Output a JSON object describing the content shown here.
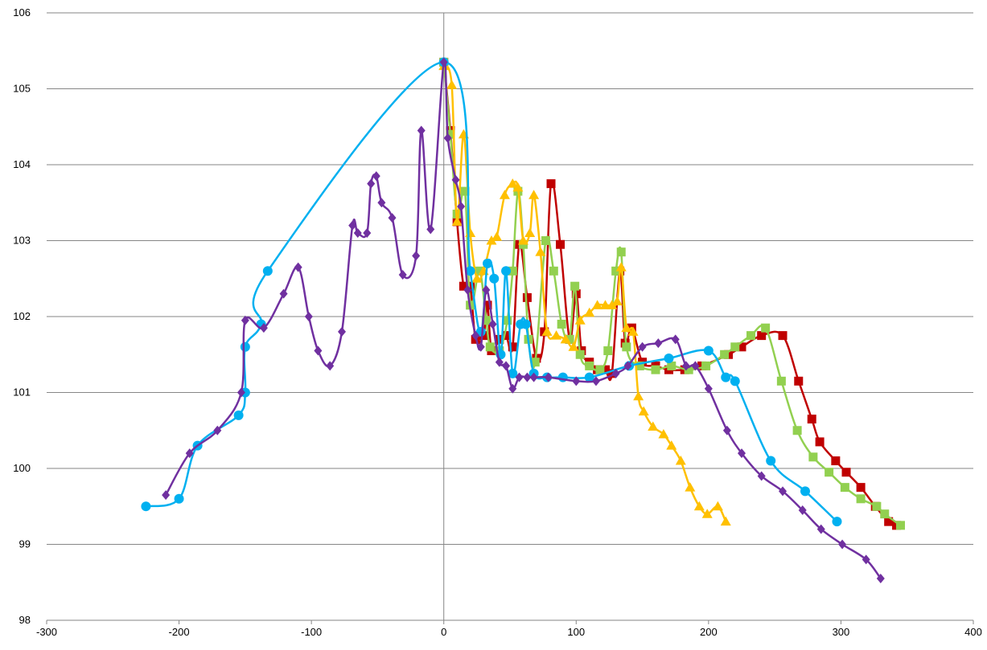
{
  "chart_data": {
    "type": "scatter",
    "title": "",
    "xlabel": "",
    "ylabel": "",
    "xlim": [
      -300,
      400
    ],
    "ylim": [
      98,
      106
    ],
    "x_ticks": [
      -300,
      -200,
      -100,
      0,
      100,
      200,
      300,
      400
    ],
    "y_ticks": [
      98,
      99,
      100,
      101,
      102,
      103,
      104,
      105,
      106
    ],
    "x_tick_labels": [
      "-300",
      "-200",
      "-100",
      "0",
      "100",
      "200",
      "300",
      "400"
    ],
    "y_tick_labels": [
      "98",
      "99",
      "100",
      "101",
      "102",
      "103",
      "104",
      "105",
      "106"
    ],
    "grid": "horizontal",
    "legend": "none",
    "series": [
      {
        "color": "#C00000",
        "marker": "square",
        "points": [
          [
            0,
            105.35
          ],
          [
            5,
            104.45
          ],
          [
            10,
            103.25
          ],
          [
            15,
            102.4
          ],
          [
            20,
            102.4
          ],
          [
            24,
            101.7
          ],
          [
            30,
            101.75
          ],
          [
            33,
            102.15
          ],
          [
            36,
            101.55
          ],
          [
            42,
            101.7
          ],
          [
            47,
            101.75
          ],
          [
            52,
            101.6
          ],
          [
            57,
            102.95
          ],
          [
            63,
            102.25
          ],
          [
            70,
            101.45
          ],
          [
            76,
            101.8
          ],
          [
            81,
            103.75
          ],
          [
            88,
            102.95
          ],
          [
            95,
            101.7
          ],
          [
            100,
            102.3
          ],
          [
            104,
            101.55
          ],
          [
            110,
            101.4
          ],
          [
            116,
            101.3
          ],
          [
            122,
            101.3
          ],
          [
            127,
            101.25
          ],
          [
            133,
            102.6
          ],
          [
            137,
            101.65
          ],
          [
            142,
            101.85
          ],
          [
            150,
            101.4
          ],
          [
            160,
            101.35
          ],
          [
            170,
            101.3
          ],
          [
            182,
            101.3
          ],
          [
            195,
            101.35
          ],
          [
            215,
            101.5
          ],
          [
            225,
            101.6
          ],
          [
            240,
            101.75
          ],
          [
            256,
            101.75
          ],
          [
            268,
            101.15
          ],
          [
            278,
            100.65
          ],
          [
            284,
            100.35
          ],
          [
            296,
            100.1
          ],
          [
            304,
            99.95
          ],
          [
            315,
            99.75
          ],
          [
            326,
            99.5
          ],
          [
            336,
            99.3
          ],
          [
            342,
            99.25
          ]
        ]
      },
      {
        "color": "#92D050",
        "marker": "square",
        "points": [
          [
            0,
            105.35
          ],
          [
            5,
            104.4
          ],
          [
            10,
            103.35
          ],
          [
            16,
            103.65
          ],
          [
            20,
            102.15
          ],
          [
            27,
            102.6
          ],
          [
            32,
            101.95
          ],
          [
            35,
            101.6
          ],
          [
            42,
            101.55
          ],
          [
            48,
            101.95
          ],
          [
            52,
            102.6
          ],
          [
            56,
            103.65
          ],
          [
            60,
            102.95
          ],
          [
            64,
            101.7
          ],
          [
            69,
            101.4
          ],
          [
            77,
            103.0
          ],
          [
            83,
            102.6
          ],
          [
            89,
            101.9
          ],
          [
            95,
            101.7
          ],
          [
            99,
            102.4
          ],
          [
            103,
            101.5
          ],
          [
            110,
            101.35
          ],
          [
            118,
            101.3
          ],
          [
            124,
            101.55
          ],
          [
            130,
            102.6
          ],
          [
            134,
            102.85
          ],
          [
            138,
            101.6
          ],
          [
            148,
            101.35
          ],
          [
            160,
            101.3
          ],
          [
            172,
            101.35
          ],
          [
            185,
            101.3
          ],
          [
            198,
            101.35
          ],
          [
            212,
            101.5
          ],
          [
            220,
            101.6
          ],
          [
            232,
            101.75
          ],
          [
            243,
            101.85
          ],
          [
            255,
            101.15
          ],
          [
            267,
            100.5
          ],
          [
            279,
            100.15
          ],
          [
            291,
            99.95
          ],
          [
            303,
            99.75
          ],
          [
            315,
            99.6
          ],
          [
            327,
            99.5
          ],
          [
            333,
            99.4
          ],
          [
            345,
            99.25
          ]
        ]
      },
      {
        "color": "#FFC000",
        "marker": "triangle",
        "points": [
          [
            0,
            105.3
          ],
          [
            6,
            105.05
          ],
          [
            10,
            103.25
          ],
          [
            15,
            104.4
          ],
          [
            20,
            103.1
          ],
          [
            25,
            102.5
          ],
          [
            30,
            102.6
          ],
          [
            36,
            103.0
          ],
          [
            40,
            103.05
          ],
          [
            46,
            103.6
          ],
          [
            52,
            103.75
          ],
          [
            56,
            103.7
          ],
          [
            60,
            103.0
          ],
          [
            65,
            103.1
          ],
          [
            68,
            103.6
          ],
          [
            73,
            102.85
          ],
          [
            78,
            101.8
          ],
          [
            85,
            101.75
          ],
          [
            92,
            101.7
          ],
          [
            98,
            101.6
          ],
          [
            103,
            101.95
          ],
          [
            110,
            102.05
          ],
          [
            116,
            102.15
          ],
          [
            122,
            102.15
          ],
          [
            127,
            102.15
          ],
          [
            131,
            102.2
          ],
          [
            134,
            102.65
          ],
          [
            138,
            101.85
          ],
          [
            143,
            101.8
          ],
          [
            147,
            100.95
          ],
          [
            151,
            100.75
          ],
          [
            158,
            100.55
          ],
          [
            166,
            100.45
          ],
          [
            172,
            100.3
          ],
          [
            179,
            100.1
          ],
          [
            186,
            99.75
          ],
          [
            193,
            99.5
          ],
          [
            199,
            99.4
          ],
          [
            207,
            99.5
          ],
          [
            213,
            99.3
          ]
        ]
      },
      {
        "color": "#00B0F0",
        "marker": "circle",
        "points": [
          [
            -225,
            99.5
          ],
          [
            -200,
            99.6
          ],
          [
            -186,
            100.3
          ],
          [
            -155,
            100.7
          ],
          [
            -150,
            101.0
          ],
          [
            -150,
            101.6
          ],
          [
            -138,
            101.9
          ],
          [
            -133,
            102.6
          ],
          [
            0,
            105.35
          ],
          [
            20,
            102.6
          ],
          [
            28,
            101.8
          ],
          [
            33,
            102.7
          ],
          [
            38,
            102.5
          ],
          [
            43,
            101.5
          ],
          [
            47,
            102.6
          ],
          [
            52,
            101.25
          ],
          [
            58,
            101.9
          ],
          [
            62,
            101.9
          ],
          [
            68,
            101.25
          ],
          [
            78,
            101.2
          ],
          [
            90,
            101.2
          ],
          [
            110,
            101.2
          ],
          [
            140,
            101.35
          ],
          [
            170,
            101.45
          ],
          [
            200,
            101.55
          ],
          [
            213,
            101.2
          ],
          [
            220,
            101.15
          ],
          [
            247,
            100.1
          ],
          [
            273,
            99.7
          ],
          [
            297,
            99.3
          ]
        ]
      },
      {
        "color": "#7030A0",
        "marker": "diamond",
        "points": [
          [
            -210,
            99.65
          ],
          [
            -192,
            100.2
          ],
          [
            -171,
            100.5
          ],
          [
            -153,
            101.0
          ],
          [
            -150,
            101.95
          ],
          [
            -136,
            101.85
          ],
          [
            -121,
            102.3
          ],
          [
            -110,
            102.65
          ],
          [
            -102,
            102.0
          ],
          [
            -95,
            101.55
          ],
          [
            -86,
            101.35
          ],
          [
            -77,
            101.8
          ],
          [
            -69,
            103.2
          ],
          [
            -65,
            103.1
          ],
          [
            -58,
            103.1
          ],
          [
            -55,
            103.75
          ],
          [
            -51,
            103.85
          ],
          [
            -47,
            103.5
          ],
          [
            -39,
            103.3
          ],
          [
            -31,
            102.55
          ],
          [
            -21,
            102.8
          ],
          [
            -17,
            104.45
          ],
          [
            -10,
            103.15
          ],
          [
            0,
            105.35
          ],
          [
            3,
            104.35
          ],
          [
            9,
            103.8
          ],
          [
            13,
            103.45
          ],
          [
            18,
            102.35
          ],
          [
            24,
            101.75
          ],
          [
            28,
            101.6
          ],
          [
            32,
            102.35
          ],
          [
            37,
            101.9
          ],
          [
            42,
            101.4
          ],
          [
            47,
            101.35
          ],
          [
            52,
            101.05
          ],
          [
            57,
            101.2
          ],
          [
            63,
            101.2
          ],
          [
            68,
            101.2
          ],
          [
            79,
            101.2
          ],
          [
            100,
            101.15
          ],
          [
            115,
            101.15
          ],
          [
            130,
            101.25
          ],
          [
            139,
            101.35
          ],
          [
            150,
            101.6
          ],
          [
            162,
            101.65
          ],
          [
            175,
            101.7
          ],
          [
            183,
            101.35
          ],
          [
            190,
            101.35
          ],
          [
            200,
            101.05
          ],
          [
            214,
            100.5
          ],
          [
            225,
            100.2
          ],
          [
            240,
            99.9
          ],
          [
            256,
            99.7
          ],
          [
            271,
            99.45
          ],
          [
            285,
            99.2
          ],
          [
            301,
            99.0
          ],
          [
            319,
            98.8
          ],
          [
            330,
            98.55
          ]
        ]
      }
    ]
  }
}
